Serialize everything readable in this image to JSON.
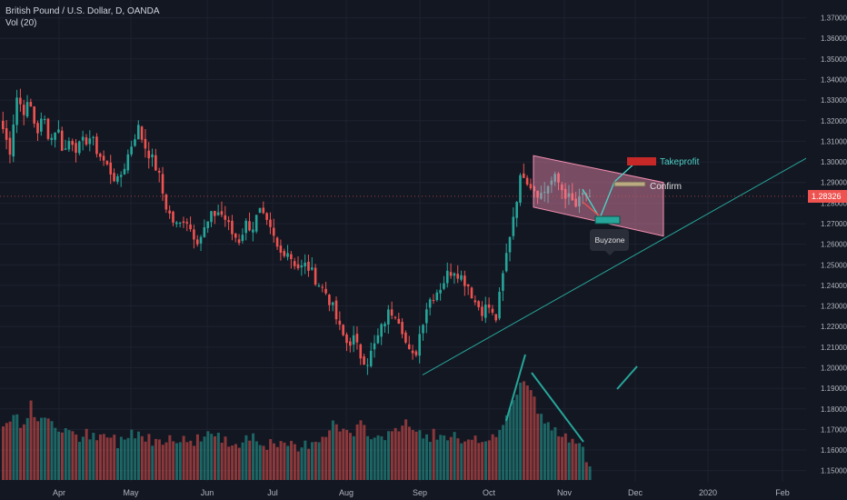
{
  "legend": {
    "title": "British Pound / U.S. Dollar, D, OANDA",
    "volume": "Vol (20)"
  },
  "chart_data": {
    "type": "candlestick",
    "instrument": "British Pound / U.S. Dollar, D, OANDA",
    "ylim": [
      1.145,
      1.376
    ],
    "y_ticks": [
      "1.37000",
      "1.36000",
      "1.35000",
      "1.34000",
      "1.33000",
      "1.32000",
      "1.31000",
      "1.30000",
      "1.29000",
      "1.28000",
      "1.27000",
      "1.26000",
      "1.25000",
      "1.24000",
      "1.23000",
      "1.22000",
      "1.21000",
      "1.20000",
      "1.19000",
      "1.18000",
      "1.17000",
      "1.16000",
      "1.15000"
    ],
    "x_ticks": [
      "Apr",
      "May",
      "Jun",
      "Jul",
      "Aug",
      "Sep",
      "Oct",
      "Nov",
      "Dec",
      "2020",
      "Feb"
    ],
    "last_price": "1.28326",
    "close_path": [
      1.316,
      1.305,
      1.332,
      1.325,
      1.328,
      1.314,
      1.322,
      1.31,
      1.318,
      1.304,
      1.312,
      1.306,
      1.31,
      1.312,
      1.305,
      1.3,
      1.295,
      1.29,
      1.298,
      1.308,
      1.317,
      1.308,
      1.302,
      1.295,
      1.28,
      1.272,
      1.268,
      1.274,
      1.266,
      1.262,
      1.268,
      1.274,
      1.276,
      1.272,
      1.265,
      1.262,
      1.27,
      1.268,
      1.276,
      1.27,
      1.264,
      1.255,
      1.258,
      1.252,
      1.248,
      1.25,
      1.245,
      1.24,
      1.236,
      1.228,
      1.218,
      1.212,
      1.214,
      1.206,
      1.203,
      1.21,
      1.218,
      1.226,
      1.228,
      1.222,
      1.208,
      1.204,
      1.22,
      1.232,
      1.236,
      1.24,
      1.246,
      1.248,
      1.244,
      1.24,
      1.232,
      1.228,
      1.23,
      1.222,
      1.242,
      1.262,
      1.28,
      1.296,
      1.29,
      1.286,
      1.284,
      1.29,
      1.292,
      1.286,
      1.282,
      1.278,
      1.284,
      1.2833
    ],
    "volume": [
      0.5,
      0.55,
      0.62,
      0.48,
      0.7,
      0.58,
      0.52,
      0.6,
      0.45,
      0.5,
      0.42,
      0.38,
      0.44,
      0.4,
      0.36,
      0.42,
      0.4,
      0.35,
      0.38,
      0.46,
      0.44,
      0.4,
      0.38,
      0.36,
      0.4,
      0.42,
      0.38,
      0.36,
      0.35,
      0.4,
      0.42,
      0.44,
      0.38,
      0.36,
      0.34,
      0.36,
      0.4,
      0.42,
      0.36,
      0.34,
      0.32,
      0.3,
      0.34,
      0.3,
      0.28,
      0.34,
      0.36,
      0.4,
      0.46,
      0.52,
      0.48,
      0.44,
      0.42,
      0.5,
      0.46,
      0.4,
      0.38,
      0.44,
      0.5,
      0.48,
      0.52,
      0.46,
      0.42,
      0.4,
      0.44,
      0.38,
      0.36,
      0.4,
      0.34,
      0.32,
      0.36,
      0.38,
      0.4,
      0.42,
      0.5,
      0.62,
      0.8,
      0.95,
      0.86,
      0.7,
      0.56,
      0.48,
      0.44,
      0.4,
      0.38,
      0.4,
      0.36,
      0.08
    ],
    "drawings": {
      "channel_box": {
        "label": ""
      },
      "trendline": {
        "label": ""
      },
      "take_profit": {
        "label": "Takeprofit"
      },
      "confirm": {
        "label": "Confirm"
      },
      "buyzone": {
        "label": "Buyzone"
      }
    },
    "colors": {
      "up": "#26a69a",
      "down": "#ef5350",
      "background": "#131722",
      "grid": "#1e2230",
      "channel": "#f48fb1",
      "trend": "#26a69a",
      "target": "#c62828",
      "last_price": "#ef5350"
    }
  }
}
